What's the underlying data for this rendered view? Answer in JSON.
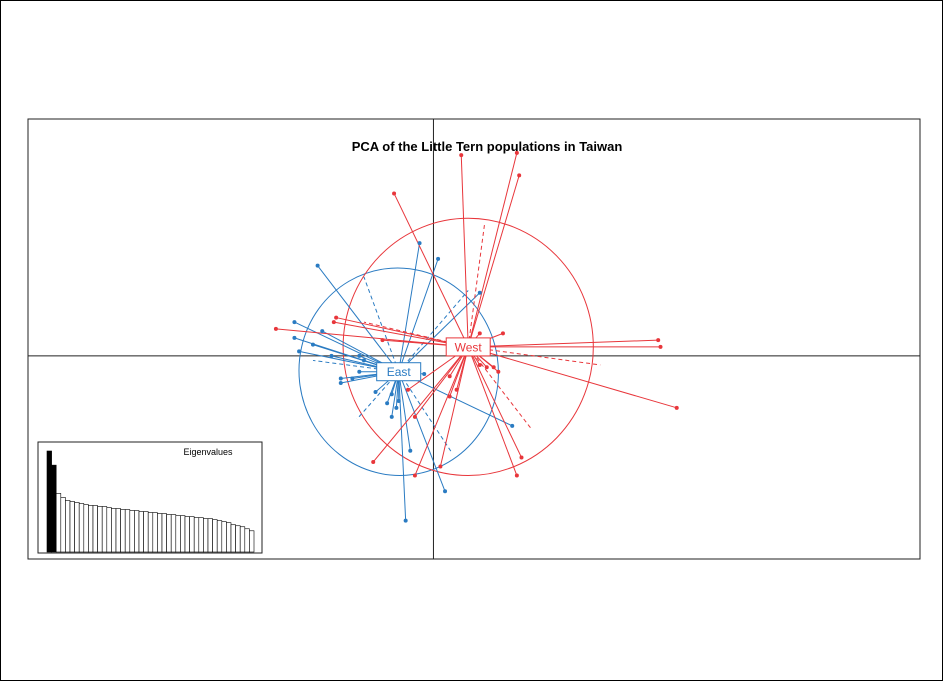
{
  "colors": {
    "east": "#2a7bc2",
    "west": "#e8363b",
    "axis": "#222222"
  },
  "chart_data": {
    "type": "scatter",
    "title": "PCA of the Little Tern populations in Taiwan",
    "grid": false,
    "legend": "none",
    "axes": "origin-crosshair",
    "xlim": [
      -1.75,
      2.1
    ],
    "ylim": [
      -0.9,
      1.05
    ],
    "groups": [
      {
        "label": "East",
        "color": "#2a7bc2",
        "centroid": [
          -0.15,
          -0.07
        ],
        "ellipse": {
          "rx": 0.43,
          "ry": 0.46,
          "rotation_deg": -8
        },
        "points": [
          [
            -0.5,
            0.4
          ],
          [
            -0.06,
            0.5
          ],
          [
            0.02,
            0.43
          ],
          [
            0.2,
            0.28
          ],
          [
            -0.52,
            0.05
          ],
          [
            -0.6,
            0.08
          ],
          [
            -0.58,
            0.02
          ],
          [
            -0.3,
            -0.02
          ],
          [
            -0.32,
            -0.07
          ],
          [
            -0.23,
            -0.1
          ],
          [
            -0.18,
            -0.17
          ],
          [
            -0.16,
            -0.23
          ],
          [
            -0.18,
            -0.27
          ],
          [
            -0.1,
            -0.42
          ],
          [
            0.05,
            -0.6
          ],
          [
            -0.12,
            -0.73
          ],
          [
            0.34,
            -0.31
          ],
          [
            -0.2,
            -0.21
          ],
          [
            -0.15,
            -0.2
          ],
          [
            -0.35,
            -0.1
          ],
          [
            -0.4,
            -0.12
          ],
          [
            -0.4,
            -0.1
          ],
          [
            -0.44,
            0.0
          ],
          [
            -0.32,
            0.0
          ],
          [
            -0.48,
            0.11
          ],
          [
            -0.6,
            0.15
          ],
          [
            -0.04,
            -0.08
          ],
          [
            -0.25,
            -0.16
          ]
        ],
        "dashed_spokes": [
          [
            -0.3,
            0.35
          ],
          [
            0.15,
            0.29
          ],
          [
            -0.52,
            -0.02
          ],
          [
            -0.33,
            -0.28
          ],
          [
            0.08,
            -0.43
          ]
        ]
      },
      {
        "label": "West",
        "color": "#e8363b",
        "centroid": [
          0.15,
          0.04
        ],
        "ellipse": {
          "rx": 0.54,
          "ry": 0.57,
          "rotation_deg": 0
        },
        "points": [
          [
            0.12,
            0.89
          ],
          [
            0.36,
            0.9
          ],
          [
            0.37,
            0.8
          ],
          [
            -0.17,
            0.72
          ],
          [
            0.97,
            0.07
          ],
          [
            0.98,
            0.04
          ],
          [
            1.05,
            -0.23
          ],
          [
            -0.68,
            0.12
          ],
          [
            -0.42,
            0.17
          ],
          [
            0.38,
            -0.45
          ],
          [
            0.36,
            -0.53
          ],
          [
            -0.26,
            -0.47
          ],
          [
            -0.08,
            -0.53
          ],
          [
            0.03,
            -0.49
          ],
          [
            0.07,
            -0.18
          ],
          [
            0.2,
            -0.04
          ],
          [
            0.23,
            -0.05
          ],
          [
            0.26,
            -0.05
          ],
          [
            0.28,
            -0.07
          ],
          [
            -0.08,
            -0.27
          ],
          [
            -0.11,
            -0.15
          ],
          [
            0.07,
            -0.09
          ],
          [
            0.1,
            -0.15
          ],
          [
            0.3,
            0.1
          ],
          [
            0.2,
            0.1
          ],
          [
            -0.43,
            0.15
          ],
          [
            -0.22,
            0.07
          ]
        ],
        "dashed_spokes": [
          [
            0.22,
            0.58
          ],
          [
            0.72,
            -0.04
          ],
          [
            0.42,
            -0.32
          ],
          [
            -0.3,
            0.15
          ]
        ]
      }
    ],
    "inset": {
      "type": "bar",
      "title": "Eigenvalues",
      "highlighted_count": 2,
      "values": [
        100,
        86,
        58,
        54,
        51,
        50,
        49,
        48,
        47,
        46,
        46,
        45,
        45,
        44,
        43,
        43,
        42,
        42,
        41,
        41,
        40,
        40,
        39,
        39,
        38,
        38,
        37,
        37,
        36,
        36,
        35,
        35,
        34,
        34,
        33,
        33,
        32,
        31,
        30,
        29,
        27,
        26,
        25,
        23,
        21
      ]
    }
  }
}
